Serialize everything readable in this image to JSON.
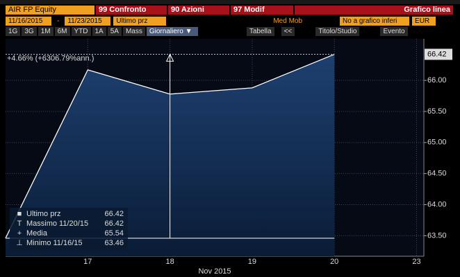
{
  "toolbar": {
    "ticker": "AIR FP Equity",
    "buttons": [
      "99 Confronto",
      "90 Azioni",
      "97 Modif"
    ],
    "chart_type": "Grafico linea",
    "start_date": "11/16/2015",
    "date_sep": "-",
    "end_date": "11/23/2015",
    "field": "Ultimo prz",
    "moving_avg": "Med Mob",
    "lower_chart": "No a grafico inferi",
    "currency": "EUR",
    "periods": [
      "1G",
      "3G",
      "1M",
      "6M",
      "YTD",
      "1A",
      "5A",
      "Mass"
    ],
    "frequency": "Giornaliero ▼",
    "table": "Tabella",
    "back": "<<",
    "title_study": "Titolo/Studio",
    "event": "Evento"
  },
  "chart_data": {
    "type": "area",
    "xlabel": "Nov 2015",
    "categories": [
      null,
      "17",
      "18",
      "19",
      "20",
      "23"
    ],
    "values": [
      63.46,
      66.17,
      65.78,
      65.88,
      66.42,
      null
    ],
    "color": "#ffffff",
    "fill": "#1e4070",
    "ylim": [
      63.17,
      66.67
    ],
    "yticks": [
      {
        "value": 63.5,
        "label": "63.50"
      },
      {
        "value": 64,
        "label": "64.00"
      },
      {
        "value": 64.5,
        "label": "64.50"
      },
      {
        "value": 65,
        "label": "65.00"
      },
      {
        "value": 65.5,
        "label": "65.50"
      },
      {
        "value": 66,
        "label": "66.00"
      }
    ],
    "last_value_label": "66.42",
    "annotation": "+4.66% (+6306.79%ann.)",
    "grid": true,
    "stats": [
      {
        "label": "Ultimo prz",
        "value": 66.42
      },
      {
        "label": "Massimo 11/20/15",
        "value": 66.42
      },
      {
        "label": "Media",
        "value": 65.54
      },
      {
        "label": "Minimo 11/16/15",
        "value": 63.46
      }
    ]
  }
}
